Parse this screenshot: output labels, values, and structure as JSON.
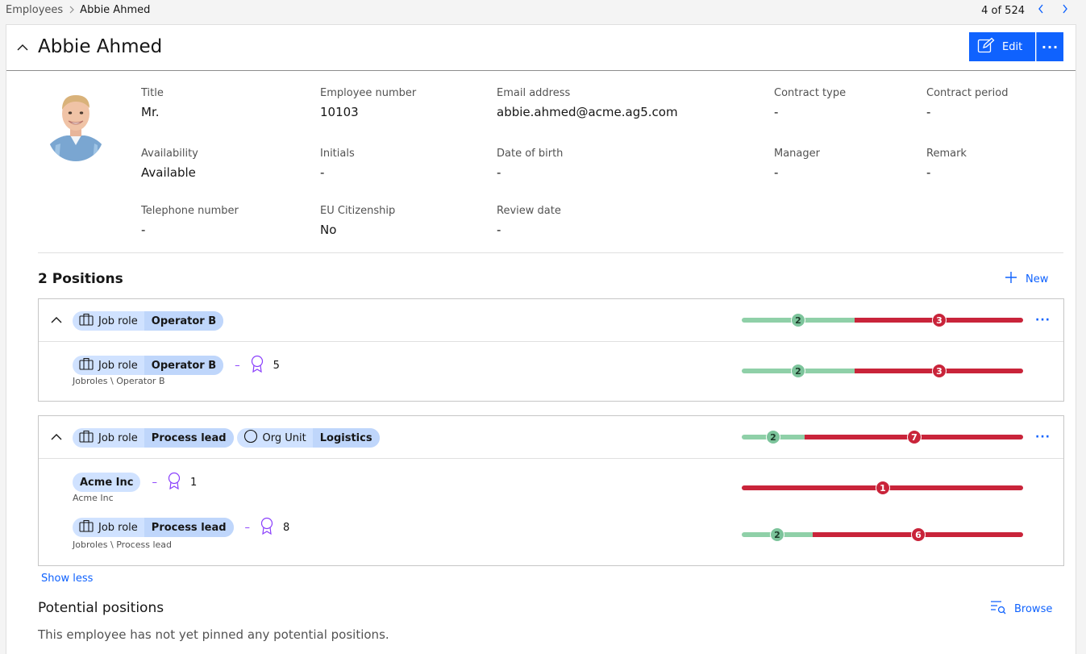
{
  "breadcrumb": {
    "parent": "Employees",
    "current": "Abbie Ahmed"
  },
  "pager": {
    "text": "4 of 524"
  },
  "employee": {
    "name": "Abbie Ahmed",
    "edit_label": "Edit",
    "more_label": "···",
    "fields": {
      "title": {
        "label": "Title",
        "value": "Mr."
      },
      "employee_number": {
        "label": "Employee number",
        "value": "10103"
      },
      "email": {
        "label": "Email address",
        "value": "abbie.ahmed@acme.ag5.com"
      },
      "contract_type": {
        "label": "Contract type",
        "value": "-"
      },
      "contract_period": {
        "label": "Contract period",
        "value": "-"
      },
      "availability": {
        "label": "Availability",
        "value": "Available"
      },
      "initials": {
        "label": "Initials",
        "value": "-"
      },
      "dob": {
        "label": "Date of birth",
        "value": "-"
      },
      "manager": {
        "label": "Manager",
        "value": "-"
      },
      "remark": {
        "label": "Remark",
        "value": "-"
      },
      "telephone": {
        "label": "Telephone number",
        "value": "-"
      },
      "eu": {
        "label": "EU Citizenship",
        "value": "No"
      },
      "review": {
        "label": "Review date",
        "value": "-"
      }
    }
  },
  "positions": {
    "title": "2 Positions",
    "new_label": "New",
    "show_less": "Show less",
    "groups": [
      {
        "tags": [
          {
            "key": "Job role",
            "value": "Operator B"
          }
        ],
        "bar": {
          "green": 2,
          "red": 3
        },
        "rows": [
          {
            "tags": [
              {
                "key": "Job role",
                "value": "Operator B"
              }
            ],
            "dash": "–",
            "count": "5",
            "path": "Jobroles \\ Operator B",
            "bar": {
              "green": 2,
              "red": 3
            }
          }
        ]
      },
      {
        "tags": [
          {
            "key": "Job role",
            "value": "Process lead"
          },
          {
            "key": "Org Unit",
            "value": "Logistics"
          }
        ],
        "bar": {
          "green": 2,
          "red": 7
        },
        "rows": [
          {
            "tags": [
              {
                "value": "Acme Inc"
              }
            ],
            "dash": "–",
            "count": "1",
            "path": "Acme Inc",
            "bar": {
              "green": 0,
              "red": 1
            }
          },
          {
            "tags": [
              {
                "key": "Job role",
                "value": "Process lead"
              }
            ],
            "dash": "–",
            "count": "8",
            "path": "Jobroles \\ Process lead",
            "bar": {
              "green": 2,
              "red": 6
            }
          }
        ]
      }
    ]
  },
  "potential": {
    "title": "Potential positions",
    "browse_label": "Browse",
    "empty_text": "This employee has not yet pinned any potential positions."
  },
  "colors": {
    "accent": "#0f62fe",
    "green": "#8fd0a8",
    "red": "#c9243a",
    "tag": "#d0e2ff",
    "award": "#8a3ffc"
  }
}
